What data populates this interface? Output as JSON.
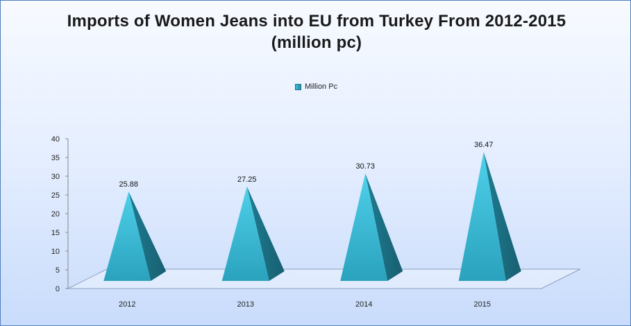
{
  "chart_data": {
    "type": "bar",
    "shape": "pyramid-3d",
    "title": "Imports of Women Jeans into EU from Turkey From 2012-2015  (million pc)",
    "categories": [
      "2012",
      "2013",
      "2014",
      "2015"
    ],
    "series": [
      {
        "name": "Million Pc",
        "values": [
          25.88,
          27.25,
          30.73,
          36.47
        ],
        "data_labels": [
          "25.88",
          "27.25",
          "30.73",
          "36.47"
        ]
      }
    ],
    "yticks": [
      "0",
      "5",
      "10",
      "15",
      "20",
      "25",
      "30",
      "35",
      "40"
    ],
    "ylim": [
      0,
      40
    ],
    "grid": false,
    "legend": "top-center",
    "colors": {
      "pyramid_light": "#45c6e2",
      "pyramid_dark": "#1f7184",
      "floor_edge": "#8aa0c0",
      "axis": "#888888"
    }
  }
}
